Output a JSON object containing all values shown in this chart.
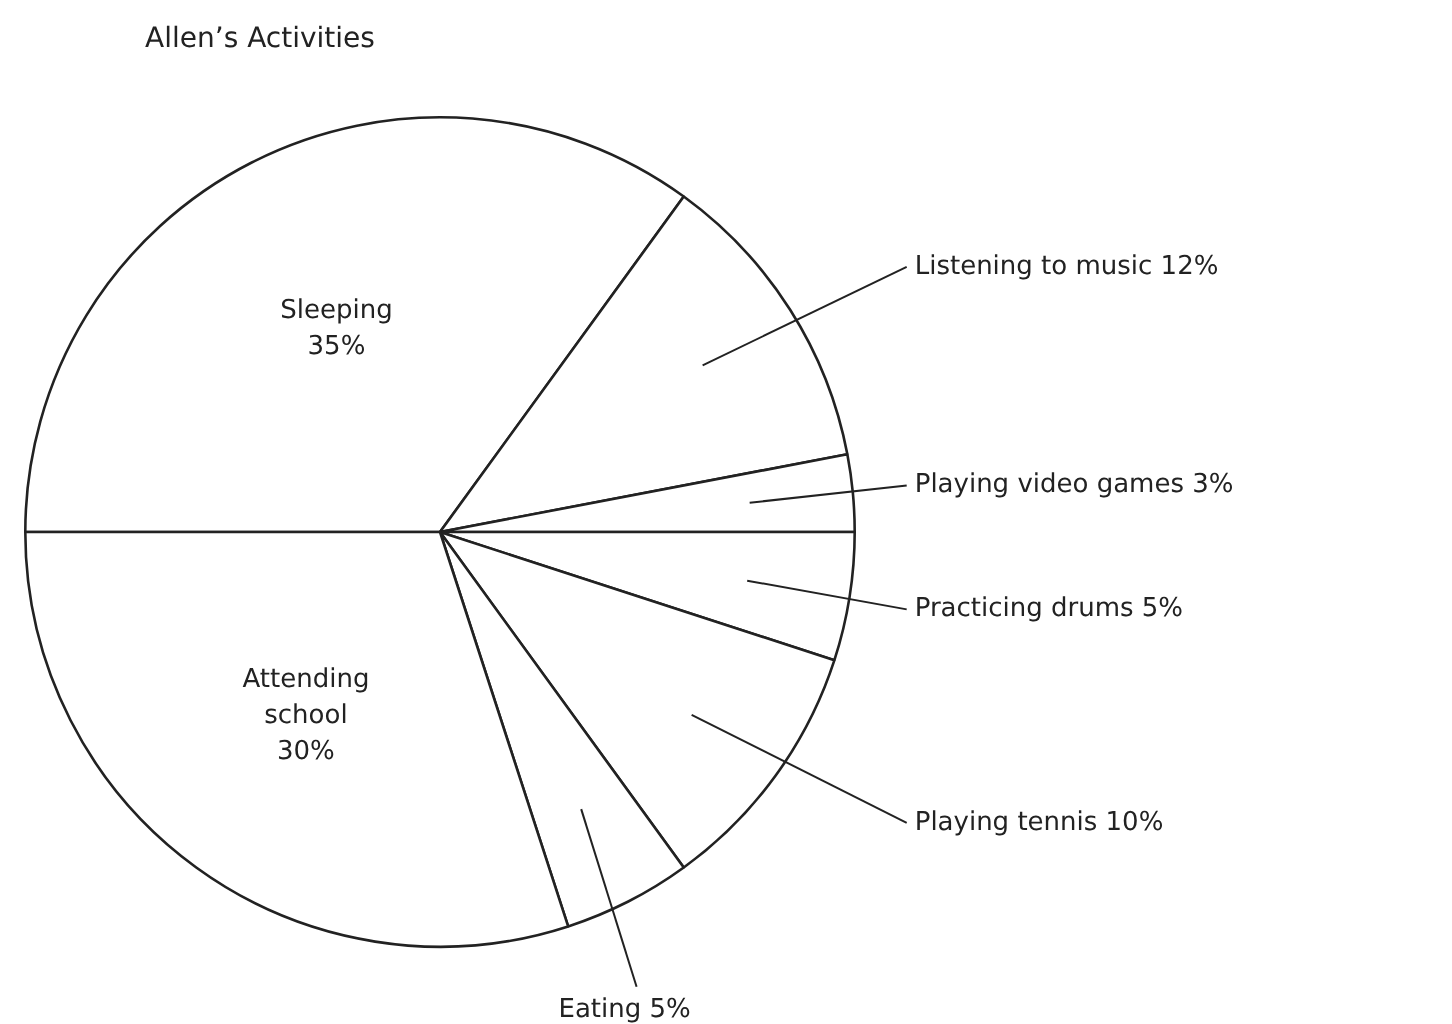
{
  "chart_data": {
    "type": "pie",
    "title": "Allen’s Activities",
    "categories": [
      "Sleeping",
      "Listening to music",
      "Playing video games",
      "Practicing drums",
      "Playing tennis",
      "Eating",
      "Attending school"
    ],
    "values": [
      35,
      12,
      3,
      5,
      10,
      5,
      30
    ],
    "colors": [
      "#ffffff",
      "#ffffff",
      "#ffffff",
      "#ffffff",
      "#ffffff",
      "#ffffff",
      "#ffffff"
    ],
    "value_labels": [
      "35%",
      "12%",
      "3%",
      "5%",
      "10%",
      "5%",
      "30%"
    ],
    "legend": false
  }
}
